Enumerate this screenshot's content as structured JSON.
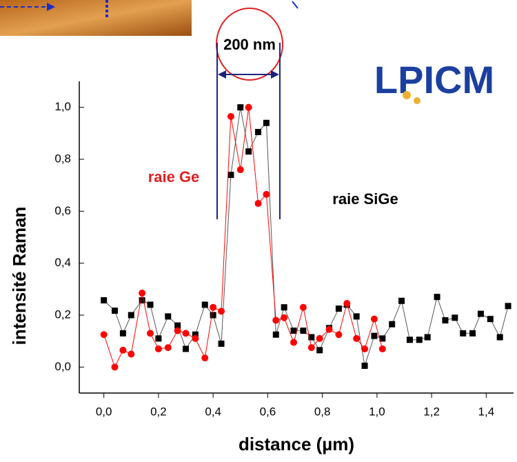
{
  "chart_data": {
    "type": "line",
    "x_label": "distance (µm)",
    "y_label": "intensité Raman",
    "annotation": "200 nm",
    "logo": "LPICM",
    "xlim": [
      -0.09,
      1.5
    ],
    "ylim": [
      -0.1,
      1.1
    ],
    "xticks": [
      {
        "value": 0,
        "label": "0,0"
      },
      {
        "value": 0.2,
        "label": "0,2"
      },
      {
        "value": 0.4,
        "label": "0,4"
      },
      {
        "value": 0.6,
        "label": "0,6"
      },
      {
        "value": 0.8,
        "label": "0,8"
      },
      {
        "value": 1.0,
        "label": "1,0"
      },
      {
        "value": 1.2,
        "label": "1,2"
      },
      {
        "value": 1.4,
        "label": "1,4"
      }
    ],
    "yticks": [
      {
        "value": 0,
        "label": "0,0"
      },
      {
        "value": 0.2,
        "label": "0,2"
      },
      {
        "value": 0.4,
        "label": "0,4"
      },
      {
        "value": 0.6,
        "label": "0,6"
      },
      {
        "value": 0.8,
        "label": "0,8"
      },
      {
        "value": 1.0,
        "label": "1,0"
      }
    ],
    "series": [
      {
        "name": "raie SiGe",
        "color": "#000000",
        "marker": "square",
        "x": [
          0.0,
          0.04,
          0.07,
          0.1,
          0.14,
          0.17,
          0.2,
          0.235,
          0.27,
          0.3,
          0.335,
          0.37,
          0.4,
          0.43,
          0.465,
          0.5,
          0.53,
          0.565,
          0.595,
          0.63,
          0.66,
          0.695,
          0.73,
          0.76,
          0.79,
          0.825,
          0.86,
          0.89,
          0.925,
          0.955,
          0.99,
          1.02,
          1.055,
          1.09,
          1.12,
          1.155,
          1.185,
          1.22,
          1.25,
          1.285,
          1.315,
          1.35,
          1.38,
          1.415,
          1.45,
          1.48
        ],
        "values": [
          0.257,
          0.217,
          0.13,
          0.2,
          0.257,
          0.24,
          0.11,
          0.195,
          0.16,
          0.07,
          0.125,
          0.24,
          0.2,
          0.09,
          0.74,
          1.0,
          0.83,
          0.905,
          0.94,
          0.125,
          0.23,
          0.14,
          0.14,
          0.115,
          0.065,
          0.15,
          0.225,
          0.24,
          0.195,
          0.005,
          0.12,
          0.11,
          0.165,
          0.255,
          0.105,
          0.105,
          0.115,
          0.27,
          0.18,
          0.19,
          0.13,
          0.13,
          0.205,
          0.185,
          0.115,
          0.235
        ]
      },
      {
        "name": "raie Ge",
        "color": "#ff0000",
        "marker": "circle",
        "x": [
          0.0,
          0.04,
          0.07,
          0.1,
          0.14,
          0.17,
          0.2,
          0.235,
          0.27,
          0.3,
          0.335,
          0.37,
          0.4,
          0.43,
          0.465,
          0.5,
          0.53,
          0.565,
          0.595,
          0.63,
          0.66,
          0.695,
          0.73,
          0.76,
          0.79,
          0.825,
          0.86,
          0.89,
          0.925,
          0.955,
          0.99,
          1.02
        ],
        "values": [
          0.125,
          0.0,
          0.065,
          0.05,
          0.285,
          0.13,
          0.07,
          0.075,
          0.14,
          0.13,
          0.11,
          0.035,
          0.23,
          0.215,
          0.965,
          0.76,
          1.0,
          0.63,
          0.665,
          0.18,
          0.19,
          0.095,
          0.23,
          0.075,
          0.11,
          0.145,
          0.125,
          0.245,
          0.11,
          0.07,
          0.185,
          0.07
        ]
      }
    ]
  }
}
